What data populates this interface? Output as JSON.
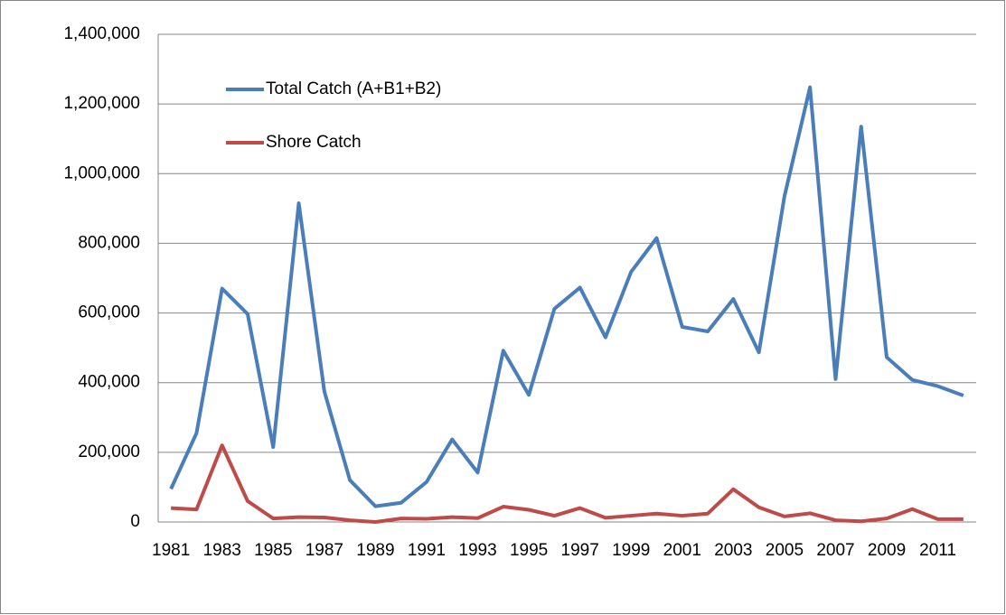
{
  "chart_data": {
    "type": "line",
    "categories": [
      "1981",
      null,
      "1983",
      null,
      "1985",
      null,
      "1987",
      null,
      "1989",
      null,
      "1991",
      null,
      "1993",
      null,
      "1995",
      null,
      "1997",
      null,
      "1999",
      null,
      "2001",
      null,
      "2003",
      null,
      "2005",
      null,
      "2007",
      null,
      "2009",
      null,
      "2011",
      null
    ],
    "series": [
      {
        "name": "Total Catch (A+B1+B2)",
        "color": "#4a7ebb",
        "values": [
          95000,
          255000,
          670000,
          597000,
          215000,
          915000,
          375000,
          120000,
          45000,
          55000,
          115000,
          237000,
          142000,
          492000,
          365000,
          612000,
          673000,
          530000,
          718000,
          815000,
          560000,
          547000,
          640000,
          487000,
          935000,
          1248000,
          410000,
          1135000,
          473000,
          408000,
          390000,
          363000
        ]
      },
      {
        "name": "Shore Catch",
        "color": "#be4b48",
        "values": [
          40000,
          36000,
          220000,
          60000,
          10000,
          14000,
          13000,
          5000,
          0,
          10000,
          9000,
          14000,
          11000,
          44000,
          35000,
          18000,
          40000,
          12000,
          18000,
          24000,
          18000,
          24000,
          94000,
          42000,
          16000,
          25000,
          5000,
          2000,
          10000,
          37000,
          8000,
          8000
        ]
      }
    ],
    "ylim": [
      0,
      1400000
    ],
    "yticks": [
      0,
      {
        "value": 200000,
        "label": "200,000"
      },
      {
        "value": 400000,
        "label": "400,000"
      },
      {
        "value": 600000,
        "label": "600,000"
      },
      {
        "value": 800000,
        "label": "800,000"
      },
      {
        "value": 1000000,
        "label": "1,000,000"
      },
      {
        "value": 1200000,
        "label": "1,200,000"
      },
      {
        "value": 1400000,
        "label": "1,400,000"
      }
    ],
    "grid": true,
    "legend": "upper-left"
  }
}
